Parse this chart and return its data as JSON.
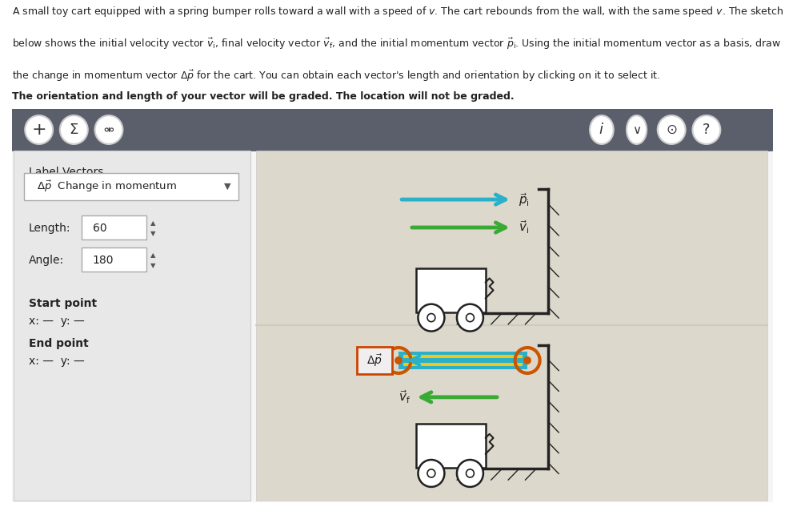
{
  "bg_color": "#ffffff",
  "panel_outer_bg": "#f5f5f5",
  "toolbar_bg": "#5a5f6b",
  "sidebar_bg": "#e8e8e8",
  "drawing_bg": "#ddd8cc",
  "label_vectors_text": "Label Vectors",
  "dropdown_text": "Δp⃗  Change in momentum",
  "length_label": "Length:",
  "length_val": "60",
  "angle_label": "Angle:",
  "angle_val": "180",
  "start_label": "Start point",
  "start_xy": "x: —  y: —",
  "end_label": "End point",
  "end_xy": "x: —  y: —",
  "pi_arrow_color": "#2ab0c8",
  "vi_arrow_color": "#3aaa35",
  "delta_p_teal": "#2ab0c8",
  "delta_p_yellow": "#f5c518",
  "delta_p_stripe": "#3aaa35",
  "end_circle_color": "#cc5500",
  "label_box_edge": "#cc4400",
  "wall_color": "#222222",
  "cart_color": "#222222",
  "text_color": "#222222",
  "divider_color": "#ccccbb"
}
